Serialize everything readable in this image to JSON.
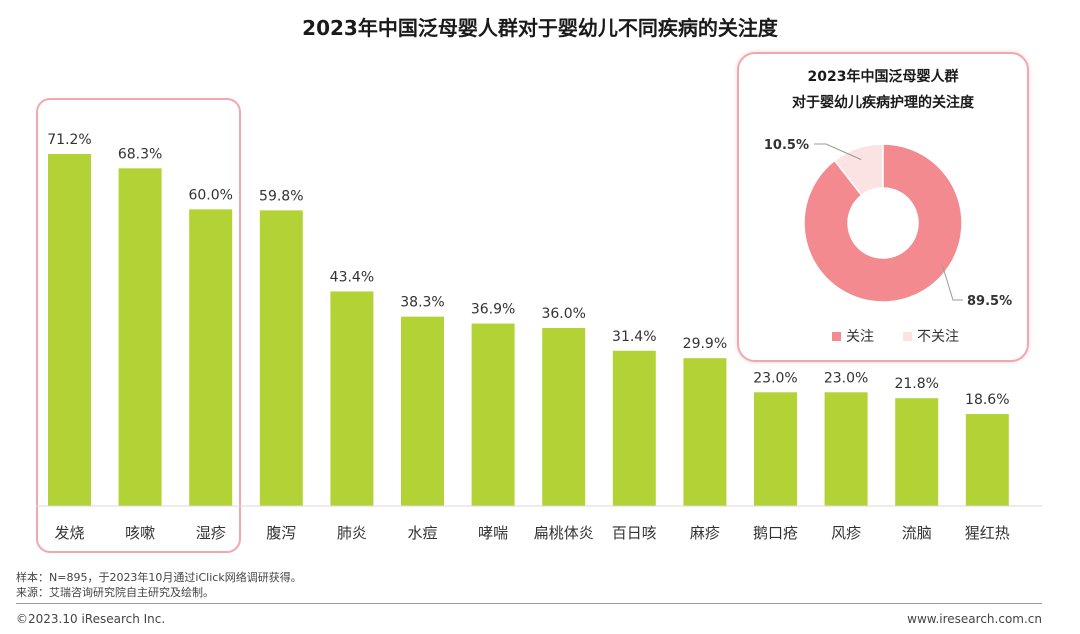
{
  "title": "2023年中国泛母婴人群对于婴幼儿不同疾病的关注度",
  "chart_data": [
    {
      "type": "bar",
      "title": "2023年中国泛母婴人群对于婴幼儿不同疾病的关注度",
      "categories": [
        "发烧",
        "咳嗽",
        "湿疹",
        "腹泻",
        "肺炎",
        "水痘",
        "哮喘",
        "扁桃体炎",
        "百日咳",
        "麻疹",
        "鹅口疮",
        "风疹",
        "流脑",
        "猩红热"
      ],
      "values": [
        71.2,
        68.3,
        60.0,
        59.8,
        43.4,
        38.3,
        36.9,
        36.0,
        31.4,
        29.9,
        23.0,
        23.0,
        21.8,
        18.6
      ],
      "value_labels": [
        "71.2%",
        "68.3%",
        "60.0%",
        "59.8%",
        "43.4%",
        "38.3%",
        "36.9%",
        "36.0%",
        "31.4%",
        "29.9%",
        "23.0%",
        "23.0%",
        "21.8%",
        "18.6%"
      ],
      "unit": "%",
      "ylim": [
        0,
        80
      ],
      "grid": false,
      "highlighted_categories": [
        "发烧",
        "咳嗽",
        "湿疹"
      ],
      "color": "#b2d235"
    },
    {
      "type": "pie",
      "title_lines": [
        "2023年中国泛母婴人群",
        "对于婴幼儿疾病护理的关注度"
      ],
      "labels": [
        "关注",
        "不关注"
      ],
      "values": [
        89.5,
        10.5
      ],
      "value_labels": [
        "89.5%",
        "10.5%"
      ],
      "colors": [
        "#f28a8f",
        "#fbe3e4"
      ],
      "legend_position": "bottom"
    }
  ],
  "footer": {
    "sample": "样本：N=895，于2023年10月通过iClick网络调研获得。",
    "source": "来源：艾瑞咨询研究院自主研究及绘制。",
    "copyright": "©2023.10 iResearch Inc.",
    "website": "www.iresearch.com.cn"
  }
}
